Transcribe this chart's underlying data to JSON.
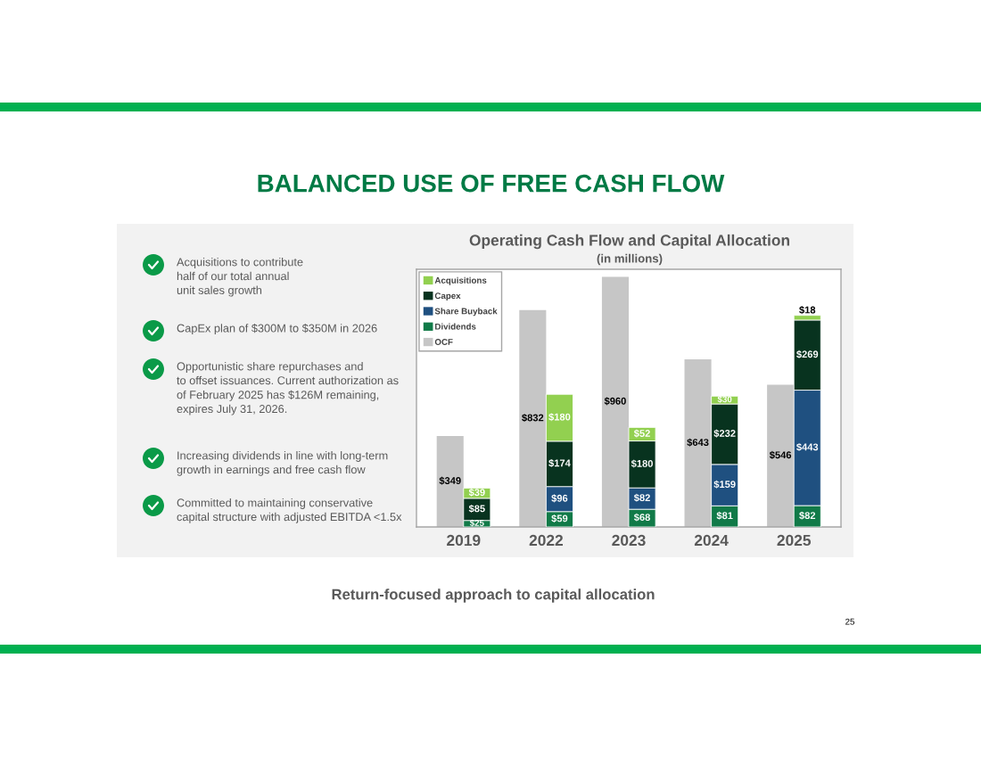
{
  "chart_data": [
    {
      "type": "bar",
      "title": "Operating Cash Flow and Capital Allocation",
      "subtitle": "(in millions)",
      "categories": [
        "2019",
        "2022",
        "2023",
        "2024",
        "2025"
      ],
      "series": [
        {
          "name": "OCF",
          "color": "#c6c6c6",
          "values": [
            349,
            832,
            960,
            643,
            546
          ],
          "value_labels": [
            "$349",
            "$832",
            "$960",
            "$643",
            "$546"
          ]
        }
      ],
      "legend": "top left",
      "tick_labels": "x",
      "annotations": [
        "BALANCED USE OF FREE CASH FLOW",
        "Acquisitions to contribute\nhalf of our total annual\nunit sales growth",
        "CapEx plan of $300M to $350M in 2026",
        "Opportunistic share repurchases and\nto offset issuances. Current authorization as\nof February 2025 has $126M remaining,\nexpires July 31, 2026.",
        "Increasing dividends in line with long-term\ngrowth in earnings and free cash flow",
        "Committed to maintaining conservative\ncapital structure with adjusted EBITDA <1.5x",
        "Return-focused approach to capital allocation",
        "25"
      ]
    },
    {
      "type": "bar",
      "categories": [
        "2019",
        "2022",
        "2023",
        "2024",
        "2025"
      ],
      "stacked": true,
      "series": [
        {
          "name": "Dividends",
          "color": "#117a48",
          "values": [
            25,
            59,
            68,
            81,
            82
          ],
          "value_labels": [
            "$25",
            "$59",
            "$68",
            "$81",
            "$82"
          ]
        },
        {
          "name": "Share Buyback",
          "color": "#1f5080",
          "values": [
            null,
            96,
            82,
            159,
            443
          ],
          "value_labels": [
            null,
            "$96",
            "$82",
            "$159",
            "$443"
          ]
        },
        {
          "name": "Capex",
          "color": "#08331f",
          "values": [
            85,
            174,
            180,
            232,
            269
          ],
          "value_labels": [
            "$85",
            "$174",
            "$180",
            "$232",
            "$269"
          ]
        },
        {
          "name": "Acquisitions",
          "color": "#92d050",
          "values": [
            39,
            180,
            52,
            30,
            18
          ],
          "value_labels": [
            "$39",
            "$180",
            "$52",
            "$30",
            "$18"
          ]
        }
      ],
      "legend": "top left",
      "tick_labels": false
    }
  ]
}
